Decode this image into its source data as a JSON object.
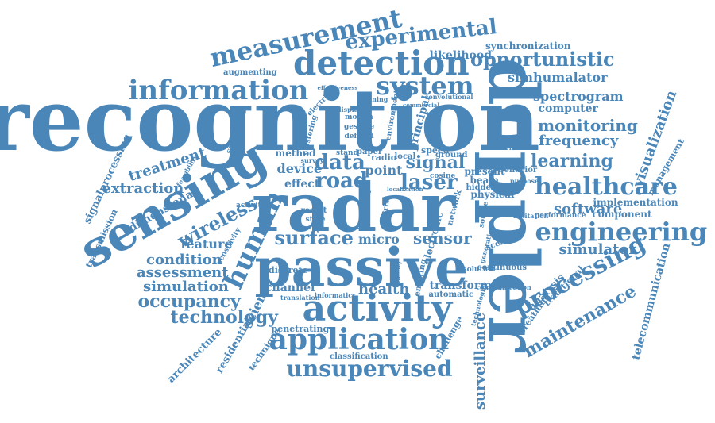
{
  "cloud": {
    "color": "#4a86b8",
    "words": [
      "recognition",
      "doppler",
      "radar",
      "passive",
      "sensing",
      "activity",
      "detection",
      "system",
      "information",
      "measurement",
      "experimental",
      "opportunistic",
      "application",
      "unsupervised",
      "engineering",
      "healthcare",
      "processing",
      "maintenance",
      "human",
      "surface",
      "sensor",
      "micro",
      "simhumalator",
      "spectrogram",
      "computer",
      "monitoring",
      "frequency",
      "learning",
      "software",
      "implementation",
      "component",
      "simulator",
      "visualization",
      "telecommunication",
      "surveillance",
      "technology",
      "occupancy",
      "simulation",
      "assessment",
      "condition",
      "feature",
      "wireless",
      "extraction",
      "dimensional",
      "treatment",
      "signalprocessing",
      "transmission",
      "data",
      "road",
      "laser",
      "signal",
      "device",
      "effect",
      "method",
      "likelihood",
      "synchronization",
      "augmenting",
      "channel",
      "health",
      "transform",
      "science",
      "architecture",
      "residential",
      "technique",
      "penetrating",
      "classification",
      "analysis",
      "traditional",
      "breathing",
      "management",
      "challenge",
      "point",
      "physical",
      "beam",
      "present",
      "automatic",
      "discrete",
      "signature",
      "electrical",
      "clustering",
      "principal",
      "continuous",
      "solution",
      "volume",
      "scenario",
      "hidden",
      "behavior",
      "performance",
      "translation",
      "fidelity",
      "network",
      "emitting",
      "gesture",
      "motion",
      "defined",
      "electronic",
      "crosstalk",
      "matrix",
      "result",
      "state",
      "radio",
      "local",
      "speed",
      "ground",
      "paper",
      "stand",
      "environment",
      "cosine",
      "different",
      "limitation",
      "sensitivity",
      "activities",
      "feasibility",
      "training",
      "convolutional",
      "commercial",
      "effectiveness",
      "survey",
      "display",
      "purpose",
      "source",
      "informatics",
      "generation",
      "communication",
      "technologies",
      "localization"
    ]
  }
}
